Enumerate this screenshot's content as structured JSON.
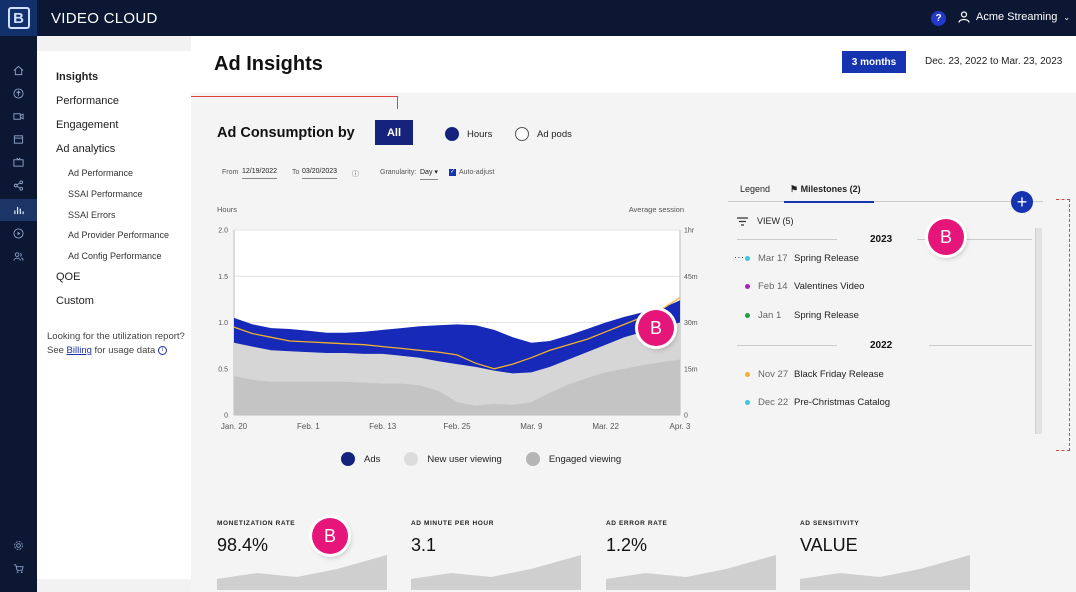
{
  "app": {
    "brand": "VIDEO CLOUD",
    "user_name": "Acme Streaming",
    "help_label": "?"
  },
  "subnav": {
    "items": [
      {
        "label": "Insights"
      },
      {
        "label": "Performance"
      },
      {
        "label": "Engagement"
      },
      {
        "label": "Ad analytics"
      },
      {
        "label": "Ad Performance"
      },
      {
        "label": "SSAI Performance"
      },
      {
        "label": "SSAI Errors"
      },
      {
        "label": "Ad Provider Performance"
      },
      {
        "label": "Ad Config Performance"
      },
      {
        "label": "QOE"
      },
      {
        "label": "Custom"
      }
    ],
    "note_line1": "Looking for the utilization report?",
    "note_see": "See",
    "note_link": "Billing",
    "note_tail": "for usage data"
  },
  "header": {
    "title": "Ad Insights",
    "range_button": "3 months",
    "date_range": "Dec. 23, 2022 to Mar. 23, 2023"
  },
  "consumption": {
    "title": "Ad Consumption by",
    "all_button": "All",
    "radio_hours": "Hours",
    "radio_pods": "Ad pods",
    "from_label": "From",
    "from_value": "12/19/2022",
    "to_label": "To",
    "to_value": "03/20/2023",
    "granularity_label": "Granularity:",
    "granularity_value": "Day",
    "auto_adjust": "Auto-adjust",
    "legend_ads": "Ads",
    "legend_new": "New user viewing",
    "legend_engaged": "Engaged viewing"
  },
  "chart_data": {
    "type": "area",
    "title": "",
    "ylabel": "Hours",
    "y2label": "Average session",
    "categories": [
      "Jan. 20",
      "Feb. 1",
      "Feb. 13",
      "Feb. 25",
      "Mar. 9",
      "Mar. 22",
      "Apr. 3"
    ],
    "y_ticks": [
      "0",
      "0.5",
      "1.0",
      "1.5",
      "2.0"
    ],
    "y2_ticks": [
      "0",
      "15m",
      "30m",
      "45m",
      "1hr"
    ],
    "ylim": [
      0,
      2.0
    ],
    "x": [
      0,
      0.25,
      0.5,
      0.75,
      1,
      1.25,
      1.5,
      1.75,
      2,
      2.25,
      2.5,
      2.75,
      3,
      3.25,
      3.5,
      3.75,
      4,
      4.25,
      4.5,
      4.75,
      5,
      5.25,
      5.5,
      5.75,
      6
    ],
    "series": [
      {
        "name": "Ads",
        "color": "#1629b8",
        "values": [
          1.05,
          0.98,
          0.94,
          0.93,
          0.91,
          0.89,
          0.89,
          0.9,
          0.92,
          0.94,
          0.96,
          0.97,
          0.98,
          0.97,
          0.92,
          0.84,
          0.78,
          0.8,
          0.86,
          0.93,
          1.0,
          1.06,
          1.11,
          1.15,
          1.24
        ]
      },
      {
        "name": "New user viewing",
        "color": "#d6d6d6",
        "values": [
          0.78,
          0.74,
          0.7,
          0.69,
          0.68,
          0.67,
          0.67,
          0.66,
          0.66,
          0.64,
          0.62,
          0.58,
          0.55,
          0.52,
          0.48,
          0.45,
          0.46,
          0.52,
          0.6,
          0.68,
          0.76,
          0.84,
          0.9,
          0.95,
          1.0
        ]
      },
      {
        "name": "Engaged viewing",
        "color": "#c4c4c4",
        "values": [
          0.42,
          0.38,
          0.36,
          0.36,
          0.36,
          0.36,
          0.36,
          0.35,
          0.34,
          0.34,
          0.32,
          0.26,
          0.14,
          0.1,
          0.12,
          0.11,
          0.14,
          0.24,
          0.33,
          0.4,
          0.46,
          0.5,
          0.54,
          0.57,
          0.6
        ]
      },
      {
        "name": "Average session",
        "color": "#f0b030",
        "values": [
          0.95,
          0.88,
          0.84,
          0.8,
          0.79,
          0.78,
          0.77,
          0.76,
          0.74,
          0.72,
          0.7,
          0.68,
          0.65,
          0.56,
          0.5,
          0.55,
          0.62,
          0.7,
          0.76,
          0.82,
          0.9,
          0.98,
          1.06,
          1.14,
          1.27
        ]
      }
    ]
  },
  "milestones": {
    "tab_legend": "Legend",
    "tab_milestones": "Milestones (2)",
    "add_label": "+",
    "view_label": "VIEW (5)",
    "years": [
      {
        "year": "2023",
        "items": [
          {
            "date": "Mar 17",
            "name": "Spring Release",
            "color": "#3cc8d8"
          },
          {
            "date": "Feb 14",
            "name": "Valentines Video",
            "color": "#b020c0"
          },
          {
            "date": "Jan 1",
            "name": "Spring Release",
            "color": "#20a040"
          }
        ]
      },
      {
        "year": "2022",
        "items": [
          {
            "date": "Nov 27",
            "name": "Black Friday Release",
            "color": "#f0b030"
          },
          {
            "date": "Dec 22",
            "name": "Pre-Christmas Catalog",
            "color": "#3cc8d8"
          }
        ]
      }
    ]
  },
  "badges": {
    "letter": "B"
  },
  "metrics": [
    {
      "label": "MONETIZATION RATE",
      "value": "98.4%"
    },
    {
      "label": "AD MINUTE PER HOUR",
      "value": "3.1"
    },
    {
      "label": "AD ERROR RATE",
      "value": "1.2%"
    },
    {
      "label": "AD SENSITIVITY",
      "value": "VALUE"
    }
  ],
  "colors": {
    "topbar": "#0b1733",
    "accent": "#1633b0",
    "badge": "#e5157a"
  }
}
